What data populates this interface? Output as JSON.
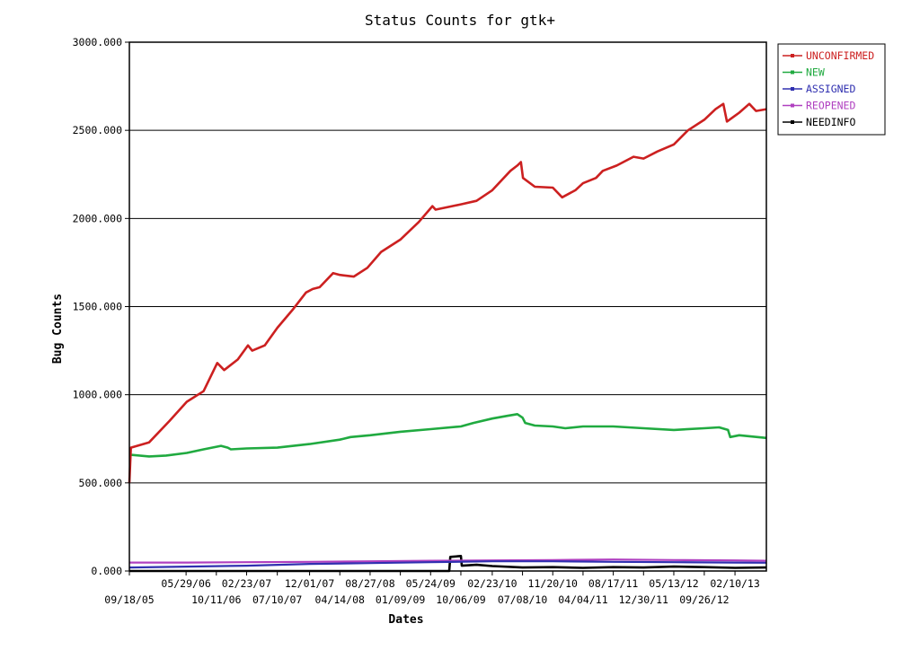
{
  "chart_data": {
    "type": "line",
    "title": "Status Counts for gtk+",
    "xlabel": "Dates",
    "ylabel": "Bug Counts",
    "ylim": [
      0,
      3000
    ],
    "y_ticks": [
      "0.000",
      "500.000",
      "1000.000",
      "1500.000",
      "2000.000",
      "2500.000",
      "3000.000"
    ],
    "x_start": "09/18/05",
    "x_end": "06/30/13",
    "x_ticks_upper": [
      "05/29/06",
      "02/23/07",
      "12/01/07",
      "08/27/08",
      "05/24/09",
      "02/23/10",
      "11/20/10",
      "08/17/11",
      "05/13/12",
      "02/10/13"
    ],
    "x_ticks_lower": [
      "09/18/05",
      "10/11/06",
      "07/10/07",
      "04/14/08",
      "01/09/09",
      "10/06/09",
      "07/08/10",
      "04/04/11",
      "12/30/11",
      "09/26/12"
    ],
    "grid": "horizontal",
    "legend_position": "top-right",
    "series": [
      {
        "name": "UNCONFIRMED",
        "color": "#cc2020",
        "points": [
          [
            "09/18/05",
            500
          ],
          [
            "09/25/05",
            700
          ],
          [
            "12/15/05",
            730
          ],
          [
            "03/15/06",
            850
          ],
          [
            "06/01/06",
            960
          ],
          [
            "08/15/06",
            1020
          ],
          [
            "10/15/06",
            1180
          ],
          [
            "11/15/06",
            1140
          ],
          [
            "01/15/07",
            1200
          ],
          [
            "03/01/07",
            1280
          ],
          [
            "03/20/07",
            1250
          ],
          [
            "05/15/07",
            1280
          ],
          [
            "07/10/07",
            1380
          ],
          [
            "09/15/07",
            1480
          ],
          [
            "11/15/07",
            1580
          ],
          [
            "12/15/07",
            1600
          ],
          [
            "01/15/08",
            1610
          ],
          [
            "03/15/08",
            1690
          ],
          [
            "04/14/08",
            1680
          ],
          [
            "06/15/08",
            1670
          ],
          [
            "08/15/08",
            1720
          ],
          [
            "10/15/08",
            1810
          ],
          [
            "01/09/09",
            1880
          ],
          [
            "04/01/09",
            1980
          ],
          [
            "06/01/09",
            2070
          ],
          [
            "06/15/09",
            2050
          ],
          [
            "10/06/09",
            2080
          ],
          [
            "12/15/09",
            2100
          ],
          [
            "02/23/10",
            2160
          ],
          [
            "05/15/10",
            2270
          ],
          [
            "06/15/10",
            2300
          ],
          [
            "07/01/10",
            2320
          ],
          [
            "07/10/10",
            2230
          ],
          [
            "09/01/10",
            2180
          ],
          [
            "11/20/10",
            2175
          ],
          [
            "01/01/11",
            2120
          ],
          [
            "03/01/11",
            2160
          ],
          [
            "04/04/11",
            2200
          ],
          [
            "06/01/11",
            2230
          ],
          [
            "07/01/11",
            2270
          ],
          [
            "09/01/11",
            2300
          ],
          [
            "11/15/11",
            2350
          ],
          [
            "12/30/11",
            2340
          ],
          [
            "03/01/12",
            2380
          ],
          [
            "05/13/12",
            2420
          ],
          [
            "07/15/12",
            2500
          ],
          [
            "09/26/12",
            2560
          ],
          [
            "11/15/12",
            2620
          ],
          [
            "12/20/12",
            2650
          ],
          [
            "01/05/13",
            2550
          ],
          [
            "03/01/13",
            2600
          ],
          [
            "04/15/13",
            2650
          ],
          [
            "05/15/13",
            2610
          ],
          [
            "06/30/13",
            2620
          ]
        ]
      },
      {
        "name": "NEW",
        "color": "#20aa40",
        "points": [
          [
            "09/18/05",
            660
          ],
          [
            "12/15/05",
            650
          ],
          [
            "03/01/06",
            655
          ],
          [
            "06/01/06",
            670
          ],
          [
            "08/15/06",
            690
          ],
          [
            "11/01/06",
            710
          ],
          [
            "12/01/06",
            700
          ],
          [
            "12/15/06",
            690
          ],
          [
            "02/23/07",
            695
          ],
          [
            "07/10/07",
            700
          ],
          [
            "12/01/07",
            720
          ],
          [
            "04/14/08",
            745
          ],
          [
            "06/01/08",
            760
          ],
          [
            "08/27/08",
            770
          ],
          [
            "01/09/09",
            790
          ],
          [
            "05/24/09",
            805
          ],
          [
            "10/06/09",
            820
          ],
          [
            "12/01/09",
            840
          ],
          [
            "02/23/10",
            865
          ],
          [
            "05/01/10",
            880
          ],
          [
            "06/15/10",
            890
          ],
          [
            "07/08/10",
            870
          ],
          [
            "07/20/10",
            840
          ],
          [
            "09/01/10",
            825
          ],
          [
            "11/20/10",
            820
          ],
          [
            "01/15/11",
            810
          ],
          [
            "04/04/11",
            820
          ],
          [
            "08/17/11",
            820
          ],
          [
            "12/30/11",
            810
          ],
          [
            "05/13/12",
            800
          ],
          [
            "09/26/12",
            810
          ],
          [
            "12/01/12",
            815
          ],
          [
            "01/10/13",
            800
          ],
          [
            "01/20/13",
            760
          ],
          [
            "03/01/13",
            770
          ],
          [
            "06/30/13",
            755
          ]
        ]
      },
      {
        "name": "ASSIGNED",
        "color": "#3030b0",
        "points": [
          [
            "09/18/05",
            20
          ],
          [
            "06/01/06",
            25
          ],
          [
            "02/23/07",
            30
          ],
          [
            "12/01/07",
            40
          ],
          [
            "08/27/08",
            45
          ],
          [
            "05/24/09",
            50
          ],
          [
            "02/23/10",
            55
          ],
          [
            "11/20/10",
            55
          ],
          [
            "08/17/11",
            52
          ],
          [
            "05/13/12",
            50
          ],
          [
            "02/10/13",
            48
          ],
          [
            "06/30/13",
            47
          ]
        ]
      },
      {
        "name": "REOPENED",
        "color": "#b040c0",
        "points": [
          [
            "09/18/05",
            48
          ],
          [
            "06/01/06",
            48
          ],
          [
            "02/23/07",
            50
          ],
          [
            "12/01/07",
            52
          ],
          [
            "08/27/08",
            55
          ],
          [
            "05/24/09",
            58
          ],
          [
            "02/23/10",
            60
          ],
          [
            "11/20/10",
            62
          ],
          [
            "08/17/11",
            65
          ],
          [
            "05/13/12",
            62
          ],
          [
            "02/10/13",
            60
          ],
          [
            "06/30/13",
            58
          ]
        ]
      },
      {
        "name": "NEEDINFO",
        "color": "#000000",
        "points": [
          [
            "09/18/05",
            0
          ],
          [
            "08/15/09",
            0
          ],
          [
            "08/20/09",
            80
          ],
          [
            "10/06/09",
            85
          ],
          [
            "10/10/09",
            30
          ],
          [
            "12/15/09",
            35
          ],
          [
            "02/23/10",
            28
          ],
          [
            "07/08/10",
            20
          ],
          [
            "11/20/10",
            22
          ],
          [
            "04/04/11",
            18
          ],
          [
            "08/17/11",
            22
          ],
          [
            "12/30/11",
            20
          ],
          [
            "05/13/12",
            25
          ],
          [
            "09/26/12",
            22
          ],
          [
            "02/10/13",
            18
          ],
          [
            "06/30/13",
            20
          ]
        ]
      }
    ]
  }
}
